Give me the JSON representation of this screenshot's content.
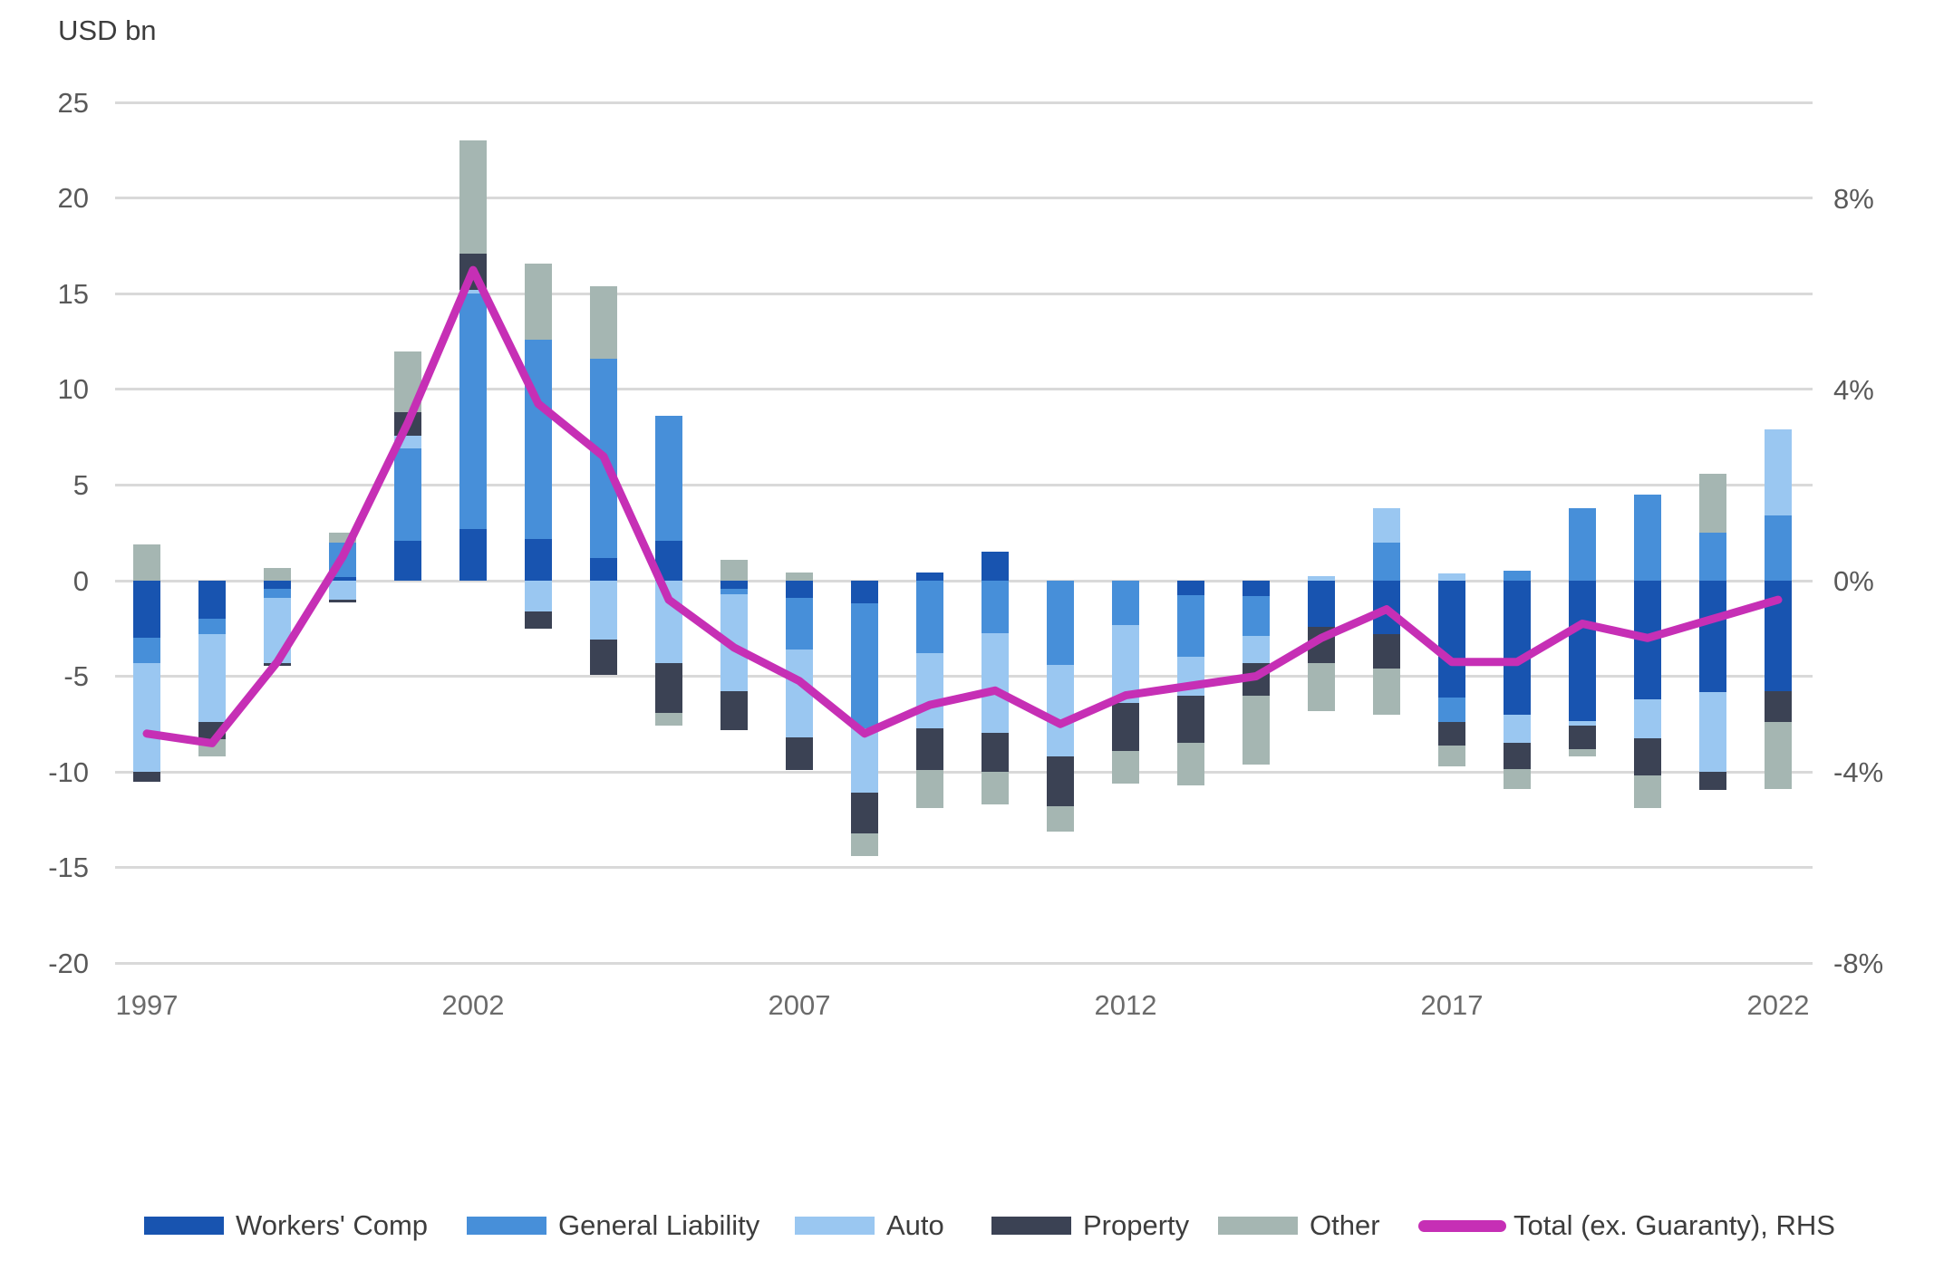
{
  "chart_data": {
    "type": "bar",
    "subtype": "stacked-bar-with-line-dual-axis",
    "title": "",
    "left_axis": {
      "title": "USD bn",
      "tick_labels": [
        "25",
        "20",
        "15",
        "10",
        "5",
        "0",
        "-5",
        "-10",
        "-15",
        "-20"
      ],
      "tick_values": [
        25,
        20,
        15,
        10,
        5,
        0,
        -5,
        -10,
        -15,
        -20
      ],
      "range": [
        -20,
        25
      ]
    },
    "right_axis": {
      "tick_labels": [
        "8%",
        "4%",
        "0%",
        "-4%",
        "-8%"
      ],
      "tick_values": [
        8,
        4,
        0,
        -4,
        -8
      ],
      "range": [
        -8,
        8
      ]
    },
    "x_axis": {
      "tick_labels": [
        "1997",
        "2002",
        "2007",
        "2012",
        "2017",
        "2022"
      ],
      "tick_years": [
        1997,
        2002,
        2007,
        2012,
        2017,
        2022
      ]
    },
    "grid": true,
    "legend_position": "bottom",
    "categories": [
      1997,
      1998,
      1999,
      2000,
      2001,
      2002,
      2003,
      2004,
      2005,
      2006,
      2007,
      2008,
      2009,
      2010,
      2011,
      2012,
      2013,
      2014,
      2015,
      2016,
      2017,
      2018,
      2019,
      2020,
      2021,
      2022
    ],
    "series": [
      {
        "name": "Workers' Comp",
        "color": "#1854B0",
        "values": [
          -3.0,
          -2.0,
          -0.45,
          0.2,
          2.1,
          2.7,
          2.2,
          1.2,
          2.1,
          -0.45,
          -0.9,
          -1.2,
          0.45,
          1.5,
          0,
          0,
          -0.75,
          -0.8,
          -2.4,
          -2.8,
          -6.1,
          -7.0,
          -7.35,
          -6.2,
          -5.85,
          -5.8
        ]
      },
      {
        "name": "General Liability",
        "color": "#478FD9",
        "values": [
          -1.3,
          -0.8,
          -0.45,
          1.8,
          4.8,
          12.3,
          10.4,
          10.4,
          6.5,
          -0.25,
          -2.7,
          -6.5,
          -3.8,
          -2.75,
          -4.4,
          -2.3,
          -3.25,
          -2.1,
          0,
          2.0,
          -1.3,
          0.5,
          3.8,
          4.5,
          2.5,
          3.4
        ]
      },
      {
        "name": "Auto",
        "color": "#9AC7F1",
        "values": [
          -5.7,
          -4.6,
          -3.4,
          -1.0,
          0.7,
          0.2,
          -1.6,
          -3.1,
          -4.3,
          -5.1,
          -4.6,
          -3.4,
          -3.9,
          -5.2,
          -4.8,
          -4.1,
          -2.0,
          -1.4,
          0.25,
          1.8,
          0.4,
          -1.5,
          -0.25,
          -2.05,
          -4.15,
          4.5
        ]
      },
      {
        "name": "Property",
        "color": "#3B4254",
        "values": [
          -0.5,
          -0.9,
          -0.15,
          -0.15,
          1.2,
          1.9,
          -0.9,
          -1.85,
          -2.6,
          -2.0,
          -1.7,
          -2.1,
          -2.2,
          -2.05,
          -2.6,
          -2.5,
          -2.5,
          -1.7,
          -1.9,
          -1.8,
          -1.2,
          -1.35,
          -1.2,
          -1.95,
          -0.95,
          -1.6
        ]
      },
      {
        "name": "Other",
        "color": "#A5B6B2",
        "values": [
          1.9,
          -0.9,
          0.65,
          0.5,
          3.2,
          5.9,
          4.0,
          3.8,
          -0.7,
          1.1,
          0.45,
          -1.2,
          -2.0,
          -1.7,
          -1.3,
          -1.7,
          -2.2,
          -3.6,
          -2.5,
          -2.4,
          -1.1,
          -1.05,
          -0.4,
          -1.7,
          3.1,
          -3.5
        ]
      }
    ],
    "line_series": {
      "name": "Total (ex. Guaranty), RHS",
      "color": "#C62FB5",
      "unit": "%",
      "axis": "right",
      "values": [
        -3.2,
        -3.4,
        -1.7,
        0.5,
        3.3,
        6.5,
        3.7,
        2.6,
        -0.4,
        -1.4,
        -2.1,
        -3.2,
        -2.6,
        -2.3,
        -3.0,
        -2.4,
        -2.2,
        -2.0,
        -1.2,
        -0.6,
        -1.7,
        -1.7,
        -0.9,
        -1.2,
        -0.8,
        -0.4
      ]
    },
    "colors": {
      "grid": "#d9d9d9",
      "axis_text": "#595959",
      "background": "#ffffff"
    }
  }
}
